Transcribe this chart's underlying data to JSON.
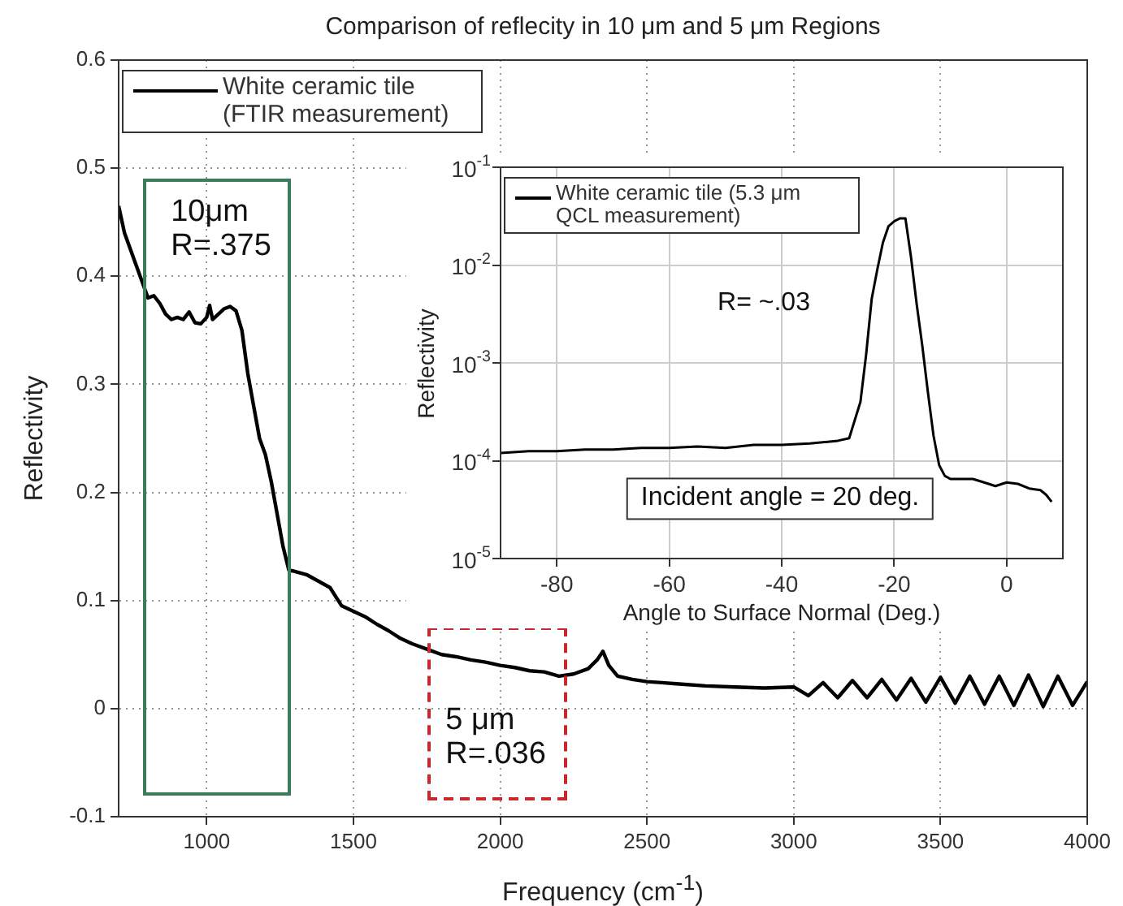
{
  "chart_data": [
    {
      "type": "line",
      "title": "Comparison of reflecity in 10 μm and 5 μm Regions",
      "xlabel": "Frequency (cm$^{-1}$)",
      "ylabel": "Reflectivity",
      "x": [
        700,
        720,
        740,
        760,
        780,
        800,
        820,
        840,
        860,
        880,
        900,
        920,
        940,
        960,
        980,
        1000,
        1010,
        1020,
        1040,
        1060,
        1080,
        1100,
        1120,
        1140,
        1160,
        1180,
        1200,
        1220,
        1240,
        1260,
        1280,
        1300,
        1340,
        1380,
        1420,
        1460,
        1500,
        1540,
        1580,
        1620,
        1660,
        1700,
        1750,
        1800,
        1850,
        1900,
        1950,
        2000,
        2050,
        2100,
        2150,
        2200,
        2250,
        2300,
        2330,
        2350,
        2370,
        2400,
        2450,
        2500,
        2550,
        2600,
        2700,
        2800,
        2900,
        3000,
        3050,
        3100,
        3150,
        3200,
        3250,
        3300,
        3350,
        3400,
        3450,
        3500,
        3550,
        3600,
        3650,
        3700,
        3750,
        3800,
        3850,
        3900,
        3950,
        4000
      ],
      "series": [
        {
          "name": "White ceramic tile (FTIR measurement)",
          "color": "#000000",
          "values": [
            0.465,
            0.44,
            0.425,
            0.41,
            0.395,
            0.38,
            0.382,
            0.375,
            0.365,
            0.36,
            0.362,
            0.36,
            0.367,
            0.357,
            0.356,
            0.362,
            0.373,
            0.36,
            0.365,
            0.37,
            0.372,
            0.368,
            0.35,
            0.31,
            0.28,
            0.25,
            0.235,
            0.21,
            0.18,
            0.15,
            0.128,
            0.127,
            0.124,
            0.118,
            0.112,
            0.095,
            0.09,
            0.085,
            0.078,
            0.072,
            0.065,
            0.06,
            0.055,
            0.05,
            0.048,
            0.045,
            0.043,
            0.04,
            0.038,
            0.035,
            0.034,
            0.03,
            0.032,
            0.037,
            0.045,
            0.053,
            0.04,
            0.03,
            0.027,
            0.025,
            0.024,
            0.023,
            0.021,
            0.02,
            0.019,
            0.02,
            0.012,
            0.024,
            0.01,
            0.026,
            0.01,
            0.027,
            0.008,
            0.028,
            0.006,
            0.029,
            0.005,
            0.03,
            0.004,
            0.03,
            0.003,
            0.031,
            0.002,
            0.03,
            0.003,
            0.025
          ]
        }
      ],
      "xlim": [
        700,
        4000
      ],
      "xticks": [
        1000,
        1500,
        2000,
        2500,
        3000,
        3500,
        4000
      ],
      "ylim": [
        -0.1,
        0.6
      ],
      "yticks": [
        -0.1,
        0,
        0.1,
        0.2,
        0.3,
        0.4,
        0.5,
        0.6
      ],
      "grid": true,
      "legend": "top left",
      "marker": "none",
      "line_style": "solid",
      "annotations": [
        "10μm\nR=.375",
        "5 μm\nR=.036"
      ]
    },
    {
      "type": "line",
      "xlabel": "Angle to Surface Normal (Deg.)",
      "ylabel": "Reflectivity",
      "x": [
        -90,
        -85,
        -80,
        -75,
        -70,
        -65,
        -60,
        -55,
        -50,
        -45,
        -40,
        -35,
        -30,
        -28,
        -26,
        -25,
        -24,
        -23,
        -22,
        -21,
        -20,
        -19,
        -18,
        -17,
        -16,
        -15,
        -14,
        -13,
        -12,
        -11,
        -10,
        -8,
        -6,
        -4,
        -2,
        0,
        2,
        4,
        6,
        7,
        8
      ],
      "series": [
        {
          "name": "White ceramic tile (5.3 μm QCL measurement)",
          "color": "#000000",
          "values": [
            0.00012,
            0.000125,
            0.000125,
            0.00013,
            0.00013,
            0.000135,
            0.000135,
            0.00014,
            0.000135,
            0.000145,
            0.000145,
            0.00015,
            0.00016,
            0.00017,
            0.0004,
            0.0012,
            0.0045,
            0.009,
            0.017,
            0.025,
            0.028,
            0.03,
            0.03,
            0.012,
            0.004,
            0.0015,
            0.0005,
            0.00018,
            9e-05,
            7e-05,
            6.5e-05,
            6.5e-05,
            6.5e-05,
            6e-05,
            5.5e-05,
            6e-05,
            5.8e-05,
            5.2e-05,
            5e-05,
            4.5e-05,
            3.8e-05
          ]
        }
      ],
      "xlim": [
        -90,
        10
      ],
      "xticks": [
        -80,
        -60,
        -40,
        -20,
        0
      ],
      "ylim": [
        1e-05,
        0.1
      ],
      "log": "y",
      "yticks": [
        {
          "value": 1e-05,
          "label": "10$^{-5}$"
        },
        {
          "value": 0.0001,
          "label": "10$^{-4}$"
        },
        {
          "value": 0.001,
          "label": "10$^{-3}$"
        },
        {
          "value": 0.01,
          "label": "10$^{-2}$"
        },
        {
          "value": 0.1,
          "label": "10$^{-1}$"
        }
      ],
      "grid": true,
      "legend": "top left",
      "marker": "none",
      "line_style": "solid",
      "annotations": [
        "R= ~.03",
        "Incident angle = 20 deg."
      ]
    }
  ]
}
